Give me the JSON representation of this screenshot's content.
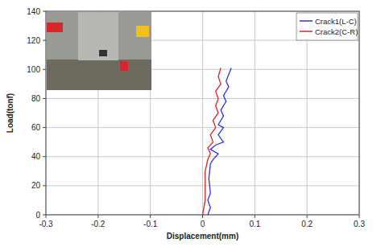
{
  "chart_data": {
    "type": "line",
    "x_label": "Displacement(mm)",
    "y_label": "Load(tonf)",
    "xlim": [
      -0.3,
      0.3
    ],
    "xticks": [
      -0.3,
      -0.2,
      -0.1,
      0,
      0.1,
      0.2,
      0.3
    ],
    "ylim": [
      0,
      140
    ],
    "yticks": [
      0,
      20,
      40,
      60,
      80,
      100,
      120,
      140
    ],
    "grid": true,
    "legend": "upper right",
    "series": [
      {
        "name": "Crack1(L-C)",
        "color": "#3030e0",
        "x": [
          0.01,
          0.015,
          0.01,
          0.015,
          0.012,
          0.015,
          0.02,
          0.03,
          0.015,
          0.025,
          0.04,
          0.03,
          0.04,
          0.03,
          0.04,
          0.035,
          0.045,
          0.04,
          0.05,
          0.045,
          0.055
        ],
        "values": [
          0,
          5,
          10,
          15,
          25,
          35,
          38,
          42,
          45,
          48,
          50,
          55,
          60,
          62,
          68,
          72,
          78,
          82,
          88,
          92,
          101
        ]
      },
      {
        "name": "Crack2(C-R)",
        "color": "#e02020",
        "x": [
          0,
          0.005,
          0.005,
          0.01,
          0.015,
          0.01,
          0.02,
          0.015,
          0.025,
          0.02,
          0.03,
          0.025,
          0.03,
          0.025,
          0.035,
          0.03,
          0.035
        ],
        "values": [
          0,
          10,
          30,
          38,
          42,
          46,
          50,
          55,
          60,
          65,
          70,
          75,
          80,
          85,
          90,
          95,
          101
        ]
      }
    ]
  }
}
